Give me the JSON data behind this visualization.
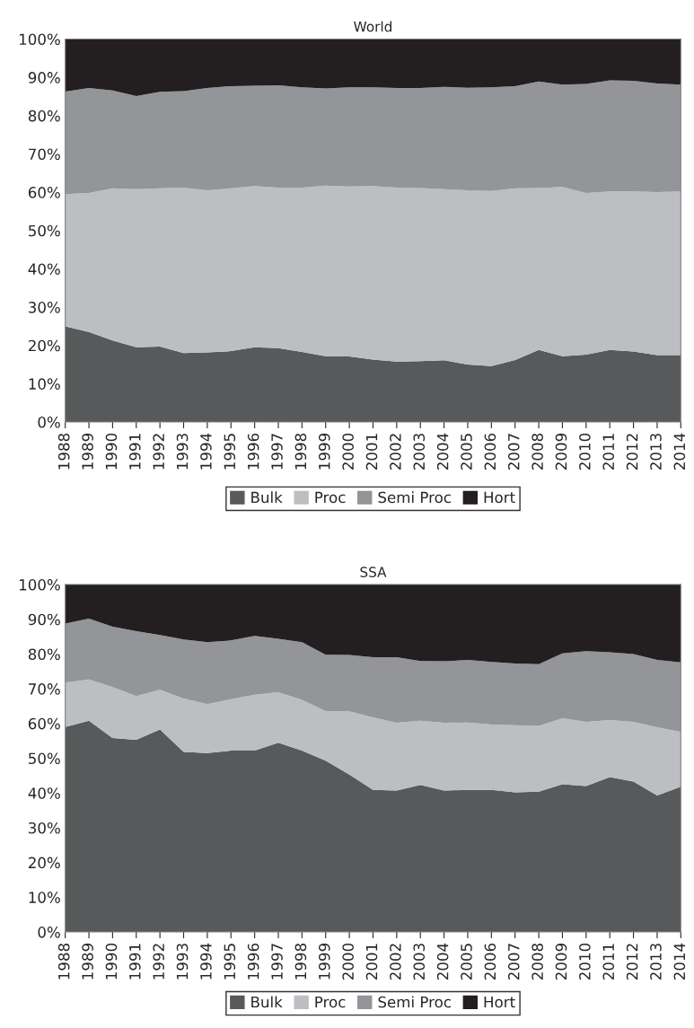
{
  "chart_data": [
    {
      "type": "area",
      "title": "World",
      "stacked": true,
      "legend": "bottom",
      "grid": false,
      "categories": [
        "1988",
        "1989",
        "1990",
        "1991",
        "1992",
        "1993",
        "1994",
        "1995",
        "1996",
        "1997",
        "1998",
        "1999",
        "2000",
        "2001",
        "2002",
        "2003",
        "2004",
        "2005",
        "2006",
        "2007",
        "2008",
        "2009",
        "2010",
        "2011",
        "2012",
        "2013",
        "2014"
      ],
      "ylim": [
        0,
        100
      ],
      "yticks": [
        {
          "value": 0,
          "label": "0%"
        },
        {
          "value": 10,
          "label": "10%"
        },
        {
          "value": 20,
          "label": "20%"
        },
        {
          "value": 30,
          "label": "30%"
        },
        {
          "value": 40,
          "label": "40%"
        },
        {
          "value": 50,
          "label": "50%"
        },
        {
          "value": 60,
          "label": "60%"
        },
        {
          "value": 70,
          "label": "70%"
        },
        {
          "value": 80,
          "label": "80%"
        },
        {
          "value": 90,
          "label": "90%"
        },
        {
          "value": 100,
          "label": "100%"
        }
      ],
      "series": [
        {
          "name": "Bulk",
          "color": "#58595b",
          "values": [
            25,
            23.5,
            21.3,
            19.5,
            19.7,
            18,
            18.2,
            18.5,
            19.5,
            19.3,
            18.3,
            17.2,
            17.1,
            16.3,
            15.8,
            15.9,
            16.1,
            15,
            14.6,
            16.2,
            18.8,
            17.2,
            17.6,
            18.8,
            18.4,
            17.5,
            17.5
          ]
        },
        {
          "name": "Proc",
          "color": "#bcbec1",
          "values": [
            34.5,
            36.3,
            39.7,
            41.3,
            41.3,
            43.2,
            42.3,
            42.5,
            42.1,
            41.9,
            42.9,
            44.5,
            44.4,
            45.3,
            45.4,
            45.2,
            44.7,
            45.5,
            45.7,
            44.8,
            42.3,
            44.2,
            42.2,
            41.4,
            41.8,
            42.5,
            42.7
          ]
        },
        {
          "name": "Semi Proc",
          "color": "#939598",
          "values": [
            26.8,
            27.4,
            25.6,
            24.3,
            25.2,
            25.2,
            26.7,
            26.7,
            26.2,
            26.7,
            26.2,
            25.4,
            25.9,
            25.8,
            26,
            26.1,
            26.7,
            26.8,
            27.1,
            26.7,
            27.8,
            26.7,
            28.5,
            29,
            28.9,
            28.4,
            27.9
          ]
        },
        {
          "name": "Hort",
          "color": "#231f20",
          "values": [
            13.7,
            12.8,
            13.4,
            14.9,
            13.8,
            13.6,
            12.8,
            12.3,
            12.2,
            12.1,
            12.6,
            12.9,
            12.6,
            12.6,
            12.8,
            12.8,
            12.5,
            12.7,
            12.6,
            12.3,
            11.1,
            11.9,
            11.7,
            10.8,
            10.9,
            11.6,
            11.9
          ]
        }
      ]
    },
    {
      "type": "area",
      "title": "SSA",
      "stacked": true,
      "legend": "bottom",
      "grid": false,
      "categories": [
        "1988",
        "1989",
        "1990",
        "1991",
        "1992",
        "1993",
        "1994",
        "1995",
        "1996",
        "1997",
        "1998",
        "1999",
        "2000",
        "2001",
        "2002",
        "2003",
        "2004",
        "2005",
        "2006",
        "2007",
        "2008",
        "2009",
        "2010",
        "2011",
        "2012",
        "2013",
        "2014"
      ],
      "ylim": [
        0,
        100
      ],
      "yticks": [
        {
          "value": 0,
          "label": "0%"
        },
        {
          "value": 10,
          "label": "10%"
        },
        {
          "value": 20,
          "label": "20%"
        },
        {
          "value": 30,
          "label": "30%"
        },
        {
          "value": 40,
          "label": "40%"
        },
        {
          "value": 50,
          "label": "50%"
        },
        {
          "value": 60,
          "label": "60%"
        },
        {
          "value": 70,
          "label": "70%"
        },
        {
          "value": 80,
          "label": "80%"
        },
        {
          "value": 90,
          "label": "90%"
        },
        {
          "value": 100,
          "label": "100%"
        }
      ],
      "series": [
        {
          "name": "Bulk",
          "color": "#58595b",
          "values": [
            59,
            60.8,
            55.8,
            55.3,
            58.3,
            51.8,
            51.5,
            52.2,
            52.2,
            54.5,
            52.2,
            49.3,
            45.3,
            40.9,
            40.7,
            42.3,
            40.7,
            40.9,
            40.9,
            40.2,
            40.4,
            42.5,
            42,
            44.6,
            43.3,
            39.3,
            41.8
          ]
        },
        {
          "name": "Proc",
          "color": "#bcbec1",
          "values": [
            12.8,
            11.9,
            14.7,
            12.6,
            11.4,
            15.4,
            14.1,
            14.8,
            16.1,
            14.5,
            14.6,
            14.3,
            18.2,
            20.9,
            19.5,
            18.5,
            19.5,
            19.4,
            18.8,
            19.3,
            18.9,
            19,
            18.5,
            16.4,
            17.2,
            19.6,
            15.8
          ]
        },
        {
          "name": "Semi Proc",
          "color": "#939598",
          "values": [
            17,
            17.5,
            17.4,
            18.7,
            15.8,
            17,
            17.8,
            16.9,
            16.9,
            15.4,
            16.6,
            16.2,
            16.2,
            17.3,
            18.9,
            17.2,
            17.7,
            18,
            18,
            17.8,
            17.8,
            18.7,
            20.3,
            19.5,
            19.5,
            19.4,
            20
          ]
        },
        {
          "name": "Hort",
          "color": "#231f20",
          "values": [
            11.2,
            9.8,
            12.1,
            13.4,
            14.5,
            15.8,
            16.6,
            16.1,
            14.8,
            15.6,
            16.6,
            20.2,
            20.3,
            20.9,
            20.9,
            22,
            22.1,
            21.7,
            22.3,
            22.7,
            22.9,
            19.8,
            19.2,
            19.5,
            20,
            21.7,
            22.4
          ]
        }
      ]
    }
  ]
}
